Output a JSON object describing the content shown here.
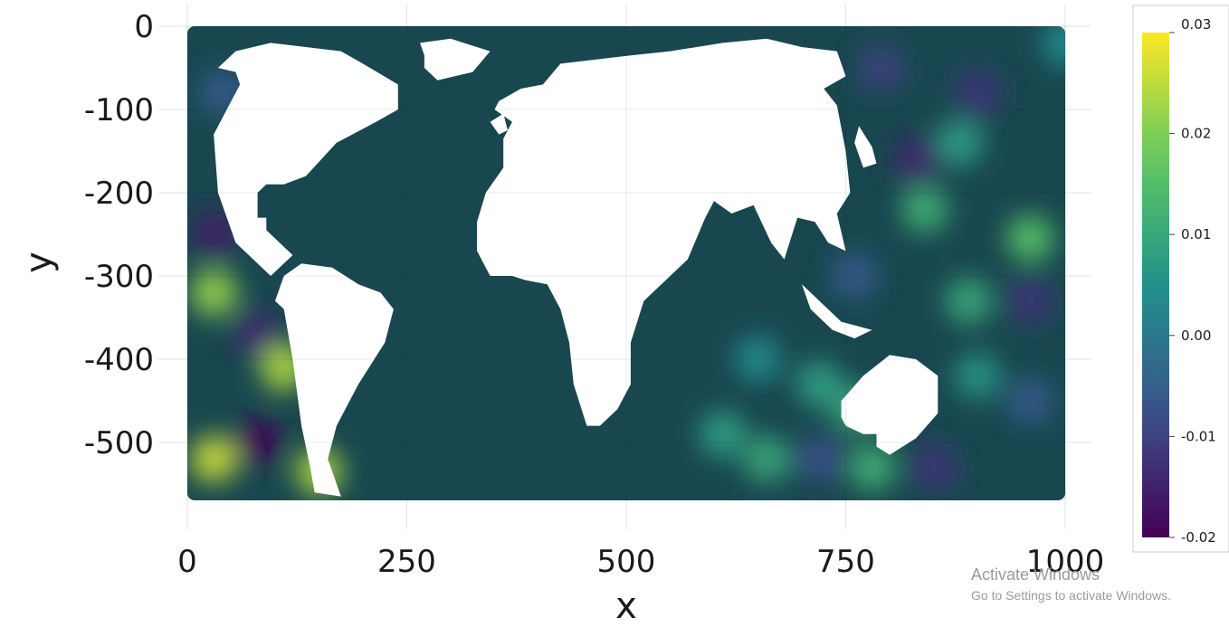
{
  "chart_data": {
    "type": "heatmap",
    "title": "",
    "xlabel": "x",
    "ylabel": "y",
    "xlim": [
      0,
      1000
    ],
    "ylim": [
      -570,
      0
    ],
    "x_ticks": [
      0,
      250,
      500,
      750,
      1000
    ],
    "x_tick_labels": [
      "0",
      "250",
      "500",
      "750",
      "1000"
    ],
    "y_ticks": [
      0,
      -100,
      -200,
      -300,
      -400,
      -500
    ],
    "y_tick_labels": [
      "0",
      "-100",
      "-200",
      "-300",
      "-400",
      "-500"
    ],
    "grid": true,
    "colorscale": "viridis",
    "colorbar": {
      "range": [
        -0.02,
        0.03
      ],
      "ticks": [
        0.03,
        0.02,
        0.01,
        0.0,
        -0.01,
        -0.02
      ],
      "tick_labels": [
        "0.03",
        "0.02",
        "0.01",
        "0.00",
        "-0.01",
        "-0.02"
      ],
      "position": "right"
    },
    "background_value": 0.0,
    "features": [
      {
        "x": 30,
        "y": -250,
        "value": -0.016
      },
      {
        "x": 30,
        "y": -320,
        "value": 0.022
      },
      {
        "x": 80,
        "y": -370,
        "value": -0.014
      },
      {
        "x": 110,
        "y": -410,
        "value": 0.024
      },
      {
        "x": 30,
        "y": -520,
        "value": 0.026
      },
      {
        "x": 80,
        "y": -500,
        "value": -0.02
      },
      {
        "x": 150,
        "y": -535,
        "value": 0.024
      },
      {
        "x": 40,
        "y": -80,
        "value": -0.006
      },
      {
        "x": 790,
        "y": -50,
        "value": -0.01
      },
      {
        "x": 900,
        "y": -80,
        "value": -0.012
      },
      {
        "x": 830,
        "y": -160,
        "value": -0.014
      },
      {
        "x": 880,
        "y": -140,
        "value": 0.008
      },
      {
        "x": 840,
        "y": -220,
        "value": 0.012
      },
      {
        "x": 960,
        "y": -255,
        "value": 0.016
      },
      {
        "x": 890,
        "y": -330,
        "value": 0.01
      },
      {
        "x": 960,
        "y": -330,
        "value": -0.012
      },
      {
        "x": 760,
        "y": -300,
        "value": -0.006
      },
      {
        "x": 720,
        "y": -430,
        "value": 0.008
      },
      {
        "x": 760,
        "y": -460,
        "value": 0.01
      },
      {
        "x": 610,
        "y": -490,
        "value": 0.008
      },
      {
        "x": 660,
        "y": -520,
        "value": 0.01
      },
      {
        "x": 720,
        "y": -520,
        "value": -0.008
      },
      {
        "x": 780,
        "y": -530,
        "value": 0.012
      },
      {
        "x": 850,
        "y": -530,
        "value": -0.012
      },
      {
        "x": 900,
        "y": -420,
        "value": 0.006
      },
      {
        "x": 960,
        "y": -450,
        "value": -0.006
      },
      {
        "x": 650,
        "y": -400,
        "value": 0.004
      },
      {
        "x": 1000,
        "y": -20,
        "value": 0.004
      }
    ],
    "land_masks": [
      {
        "name": "north-america",
        "points": [
          [
            35,
            -50
          ],
          [
            55,
            -30
          ],
          [
            95,
            -20
          ],
          [
            175,
            -30
          ],
          [
            200,
            -45
          ],
          [
            240,
            -70
          ],
          [
            240,
            -100
          ],
          [
            215,
            -115
          ],
          [
            170,
            -140
          ],
          [
            135,
            -180
          ],
          [
            110,
            -190
          ],
          [
            90,
            -190
          ],
          [
            80,
            -200
          ],
          [
            80,
            -230
          ],
          [
            90,
            -230
          ],
          [
            90,
            -245
          ],
          [
            120,
            -275
          ],
          [
            95,
            -300
          ],
          [
            85,
            -290
          ],
          [
            55,
            -260
          ],
          [
            35,
            -200
          ],
          [
            30,
            -130
          ],
          [
            60,
            -70
          ],
          [
            55,
            -55
          ]
        ]
      },
      {
        "name": "greenland",
        "points": [
          [
            265,
            -20
          ],
          [
            300,
            -15
          ],
          [
            345,
            -30
          ],
          [
            325,
            -55
          ],
          [
            285,
            -65
          ],
          [
            270,
            -50
          ],
          [
            270,
            -35
          ]
        ]
      },
      {
        "name": "south-america",
        "points": [
          [
            110,
            -300
          ],
          [
            130,
            -285
          ],
          [
            165,
            -290
          ],
          [
            195,
            -310
          ],
          [
            220,
            -320
          ],
          [
            235,
            -340
          ],
          [
            225,
            -380
          ],
          [
            195,
            -430
          ],
          [
            170,
            -480
          ],
          [
            160,
            -520
          ],
          [
            175,
            -565
          ],
          [
            145,
            -560
          ],
          [
            140,
            -530
          ],
          [
            130,
            -480
          ],
          [
            120,
            -400
          ],
          [
            110,
            -340
          ],
          [
            100,
            -330
          ]
        ]
      },
      {
        "name": "eurasia-africa",
        "points": [
          [
            355,
            -90
          ],
          [
            380,
            -75
          ],
          [
            405,
            -70
          ],
          [
            425,
            -45
          ],
          [
            505,
            -35
          ],
          [
            550,
            -30
          ],
          [
            610,
            -20
          ],
          [
            660,
            -15
          ],
          [
            700,
            -25
          ],
          [
            740,
            -30
          ],
          [
            750,
            -60
          ],
          [
            725,
            -75
          ],
          [
            740,
            -95
          ],
          [
            750,
            -150
          ],
          [
            755,
            -200
          ],
          [
            740,
            -225
          ],
          [
            750,
            -270
          ],
          [
            730,
            -260
          ],
          [
            715,
            -235
          ],
          [
            695,
            -230
          ],
          [
            680,
            -280
          ],
          [
            665,
            -260
          ],
          [
            645,
            -215
          ],
          [
            620,
            -225
          ],
          [
            600,
            -210
          ],
          [
            590,
            -230
          ],
          [
            570,
            -280
          ],
          [
            540,
            -310
          ],
          [
            520,
            -330
          ],
          [
            505,
            -380
          ],
          [
            505,
            -430
          ],
          [
            490,
            -460
          ],
          [
            470,
            -480
          ],
          [
            455,
            -480
          ],
          [
            440,
            -430
          ],
          [
            435,
            -380
          ],
          [
            425,
            -340
          ],
          [
            410,
            -310
          ],
          [
            385,
            -305
          ],
          [
            370,
            -300
          ],
          [
            345,
            -300
          ],
          [
            330,
            -270
          ],
          [
            330,
            -235
          ],
          [
            340,
            -200
          ],
          [
            360,
            -170
          ],
          [
            360,
            -135
          ],
          [
            370,
            -115
          ],
          [
            350,
            -100
          ]
        ]
      },
      {
        "name": "british-isles",
        "points": [
          [
            345,
            -115
          ],
          [
            360,
            -105
          ],
          [
            365,
            -125
          ],
          [
            355,
            -130
          ]
        ]
      },
      {
        "name": "japan",
        "points": [
          [
            765,
            -120
          ],
          [
            780,
            -145
          ],
          [
            785,
            -165
          ],
          [
            770,
            -170
          ],
          [
            760,
            -140
          ]
        ]
      },
      {
        "name": "indonesia",
        "points": [
          [
            700,
            -310
          ],
          [
            720,
            -330
          ],
          [
            745,
            -355
          ],
          [
            780,
            -365
          ],
          [
            760,
            -375
          ],
          [
            735,
            -365
          ],
          [
            710,
            -340
          ]
        ]
      },
      {
        "name": "australia",
        "points": [
          [
            745,
            -450
          ],
          [
            770,
            -420
          ],
          [
            800,
            -395
          ],
          [
            830,
            -400
          ],
          [
            855,
            -420
          ],
          [
            855,
            -465
          ],
          [
            830,
            -495
          ],
          [
            800,
            -515
          ],
          [
            785,
            -505
          ],
          [
            785,
            -490
          ],
          [
            770,
            -490
          ],
          [
            750,
            -480
          ],
          [
            745,
            -470
          ]
        ]
      }
    ]
  }
}
